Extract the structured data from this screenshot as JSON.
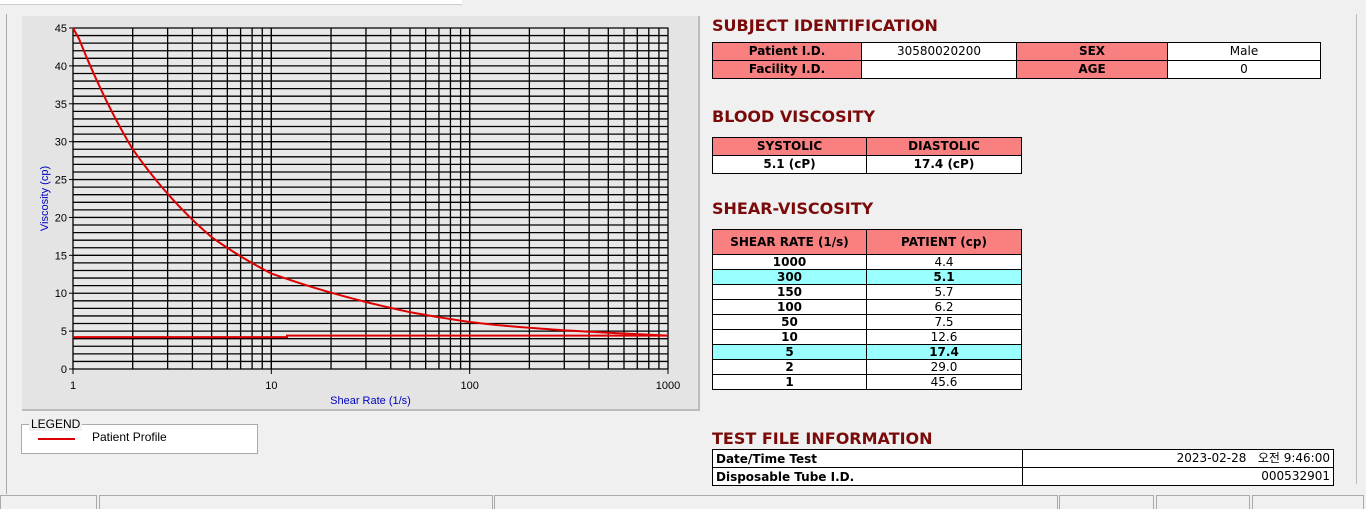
{
  "chart_data": {
    "type": "line",
    "xlabel": "Shear Rate (1/s)",
    "ylabel": "Viscosity (cp)",
    "x_scale": "log",
    "xlim": [
      1,
      1000
    ],
    "ylim": [
      0,
      45
    ],
    "x_ticks": [
      "1",
      "10",
      "100",
      "1000"
    ],
    "y_ticks": [
      "0",
      "5",
      "10",
      "15",
      "20",
      "25",
      "30",
      "35",
      "40",
      "45"
    ],
    "grid": true,
    "series": [
      {
        "name": "Patient Profile",
        "color": "#dd0000",
        "x": [
          1,
          2,
          5,
          10,
          50,
          100,
          150,
          300,
          1000
        ],
        "y": [
          45.6,
          29.0,
          17.4,
          12.6,
          7.5,
          6.2,
          5.7,
          5.1,
          4.4
        ]
      },
      {
        "color": "#dd0000",
        "x": [
          1,
          12,
          12,
          1000
        ],
        "y": [
          4.2,
          4.2,
          4.4,
          4.4
        ]
      }
    ],
    "legend": {
      "title": "LEGEND",
      "position": "bottom-left",
      "entries": [
        "Patient Profile"
      ]
    }
  },
  "subject": {
    "title": "SUBJECT IDENTIFICATION",
    "patient_id_label": "Patient I.D.",
    "patient_id": "30580020200",
    "sex_label": "SEX",
    "sex": "Male",
    "facility_label": "Facility I.D.",
    "facility": "",
    "age_label": "AGE",
    "age": "0"
  },
  "blood": {
    "title": "BLOOD VISCOSITY",
    "systolic_label": "SYSTOLIC",
    "diastolic_label": "DIASTOLIC",
    "systolic": "5.1 (cP)",
    "diastolic": "17.4 (cP)"
  },
  "shear": {
    "title": "SHEAR-VISCOSITY",
    "col1": "SHEAR RATE (1/s)",
    "col2": "PATIENT (cp)",
    "rows": [
      [
        "1000",
        "4.4",
        false
      ],
      [
        "300",
        "5.1",
        true
      ],
      [
        "150",
        "5.7",
        false
      ],
      [
        "100",
        "6.2",
        false
      ],
      [
        "50",
        "7.5",
        false
      ],
      [
        "10",
        "12.6",
        false
      ],
      [
        "5",
        "17.4",
        true
      ],
      [
        "2",
        "29.0",
        false
      ],
      [
        "1",
        "45.6",
        false
      ]
    ]
  },
  "testfile": {
    "title": "TEST FILE INFORMATION",
    "datetime_label": "Date/Time Test",
    "datetime": "2023-02-28   오전 9:46:00",
    "tube_label": "Disposable Tube I.D.",
    "tube": "000532901"
  },
  "colors": {
    "header": "#f88080",
    "highlight": "#99ffff",
    "title": "#7a0a0a",
    "curve": "#dd0000"
  }
}
